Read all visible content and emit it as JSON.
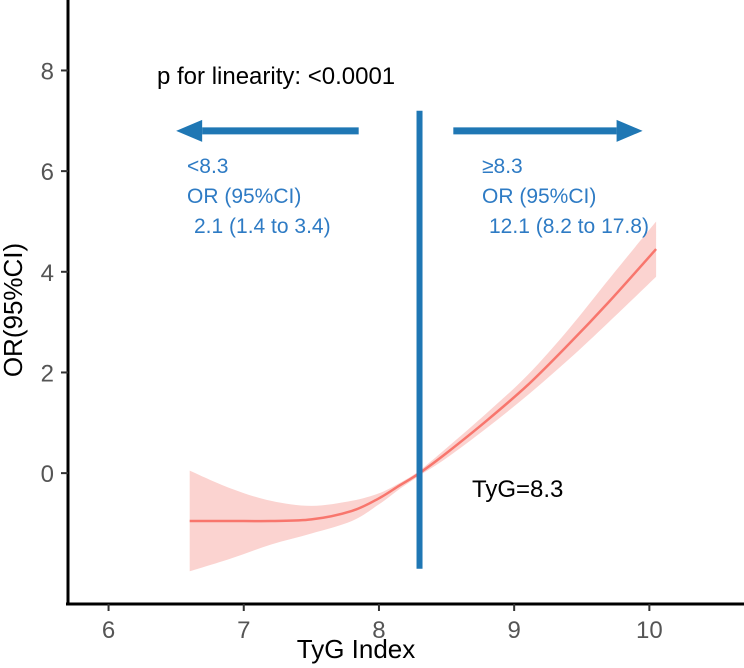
{
  "chart_data": {
    "type": "line",
    "title": "",
    "xlabel": "TyG Index",
    "ylabel": "OR(95%CI)",
    "xlim": [
      5.7,
      10.7
    ],
    "ylim": [
      -2.6,
      9.4
    ],
    "x_ticks": [
      6,
      7,
      8,
      9,
      10
    ],
    "y_ticks": [
      0,
      2,
      4,
      6,
      8
    ],
    "grid": false,
    "series": [
      {
        "name": "OR spline",
        "color": "#F8766D",
        "band_color": "#FBD3D0",
        "x": [
          6.6,
          6.9,
          7.2,
          7.5,
          7.8,
          8.0,
          8.15,
          8.3,
          8.5,
          8.8,
          9.1,
          9.4,
          9.7,
          10.05
        ],
        "y": [
          -0.95,
          -0.95,
          -0.95,
          -0.92,
          -0.75,
          -0.5,
          -0.25,
          0.0,
          0.4,
          1.05,
          1.75,
          2.55,
          3.4,
          4.45
        ],
        "lower": [
          -1.95,
          -1.7,
          -1.42,
          -1.2,
          -0.95,
          -0.62,
          -0.32,
          -0.05,
          0.3,
          0.9,
          1.55,
          2.25,
          3.0,
          3.9
        ],
        "upper": [
          0.05,
          -0.3,
          -0.55,
          -0.65,
          -0.55,
          -0.4,
          -0.2,
          0.05,
          0.5,
          1.2,
          1.95,
          2.85,
          3.85,
          5.0
        ]
      }
    ],
    "cutoff": {
      "x": 8.3,
      "y_from": -1.9,
      "y_to": 7.2,
      "color": "#1F77B4",
      "label": "TyG=8.3"
    },
    "annotations": {
      "p_linearity": "p for linearity: <0.0001",
      "left": {
        "range": "<8.3",
        "or_label": "OR (95%CI)",
        "value": "2.1 (1.4 to 3.4)"
      },
      "right": {
        "range": "≥8.3",
        "or_label": "OR (95%CI)",
        "value": "12.1 (8.2 to 17.8)"
      }
    },
    "arrows": {
      "left": {
        "from_x": 7.85,
        "to_x": 6.5,
        "y": 6.8
      },
      "right": {
        "from_x": 8.55,
        "to_x": 9.95,
        "y": 6.8
      }
    },
    "annotation_color": "#2E7BC4"
  }
}
